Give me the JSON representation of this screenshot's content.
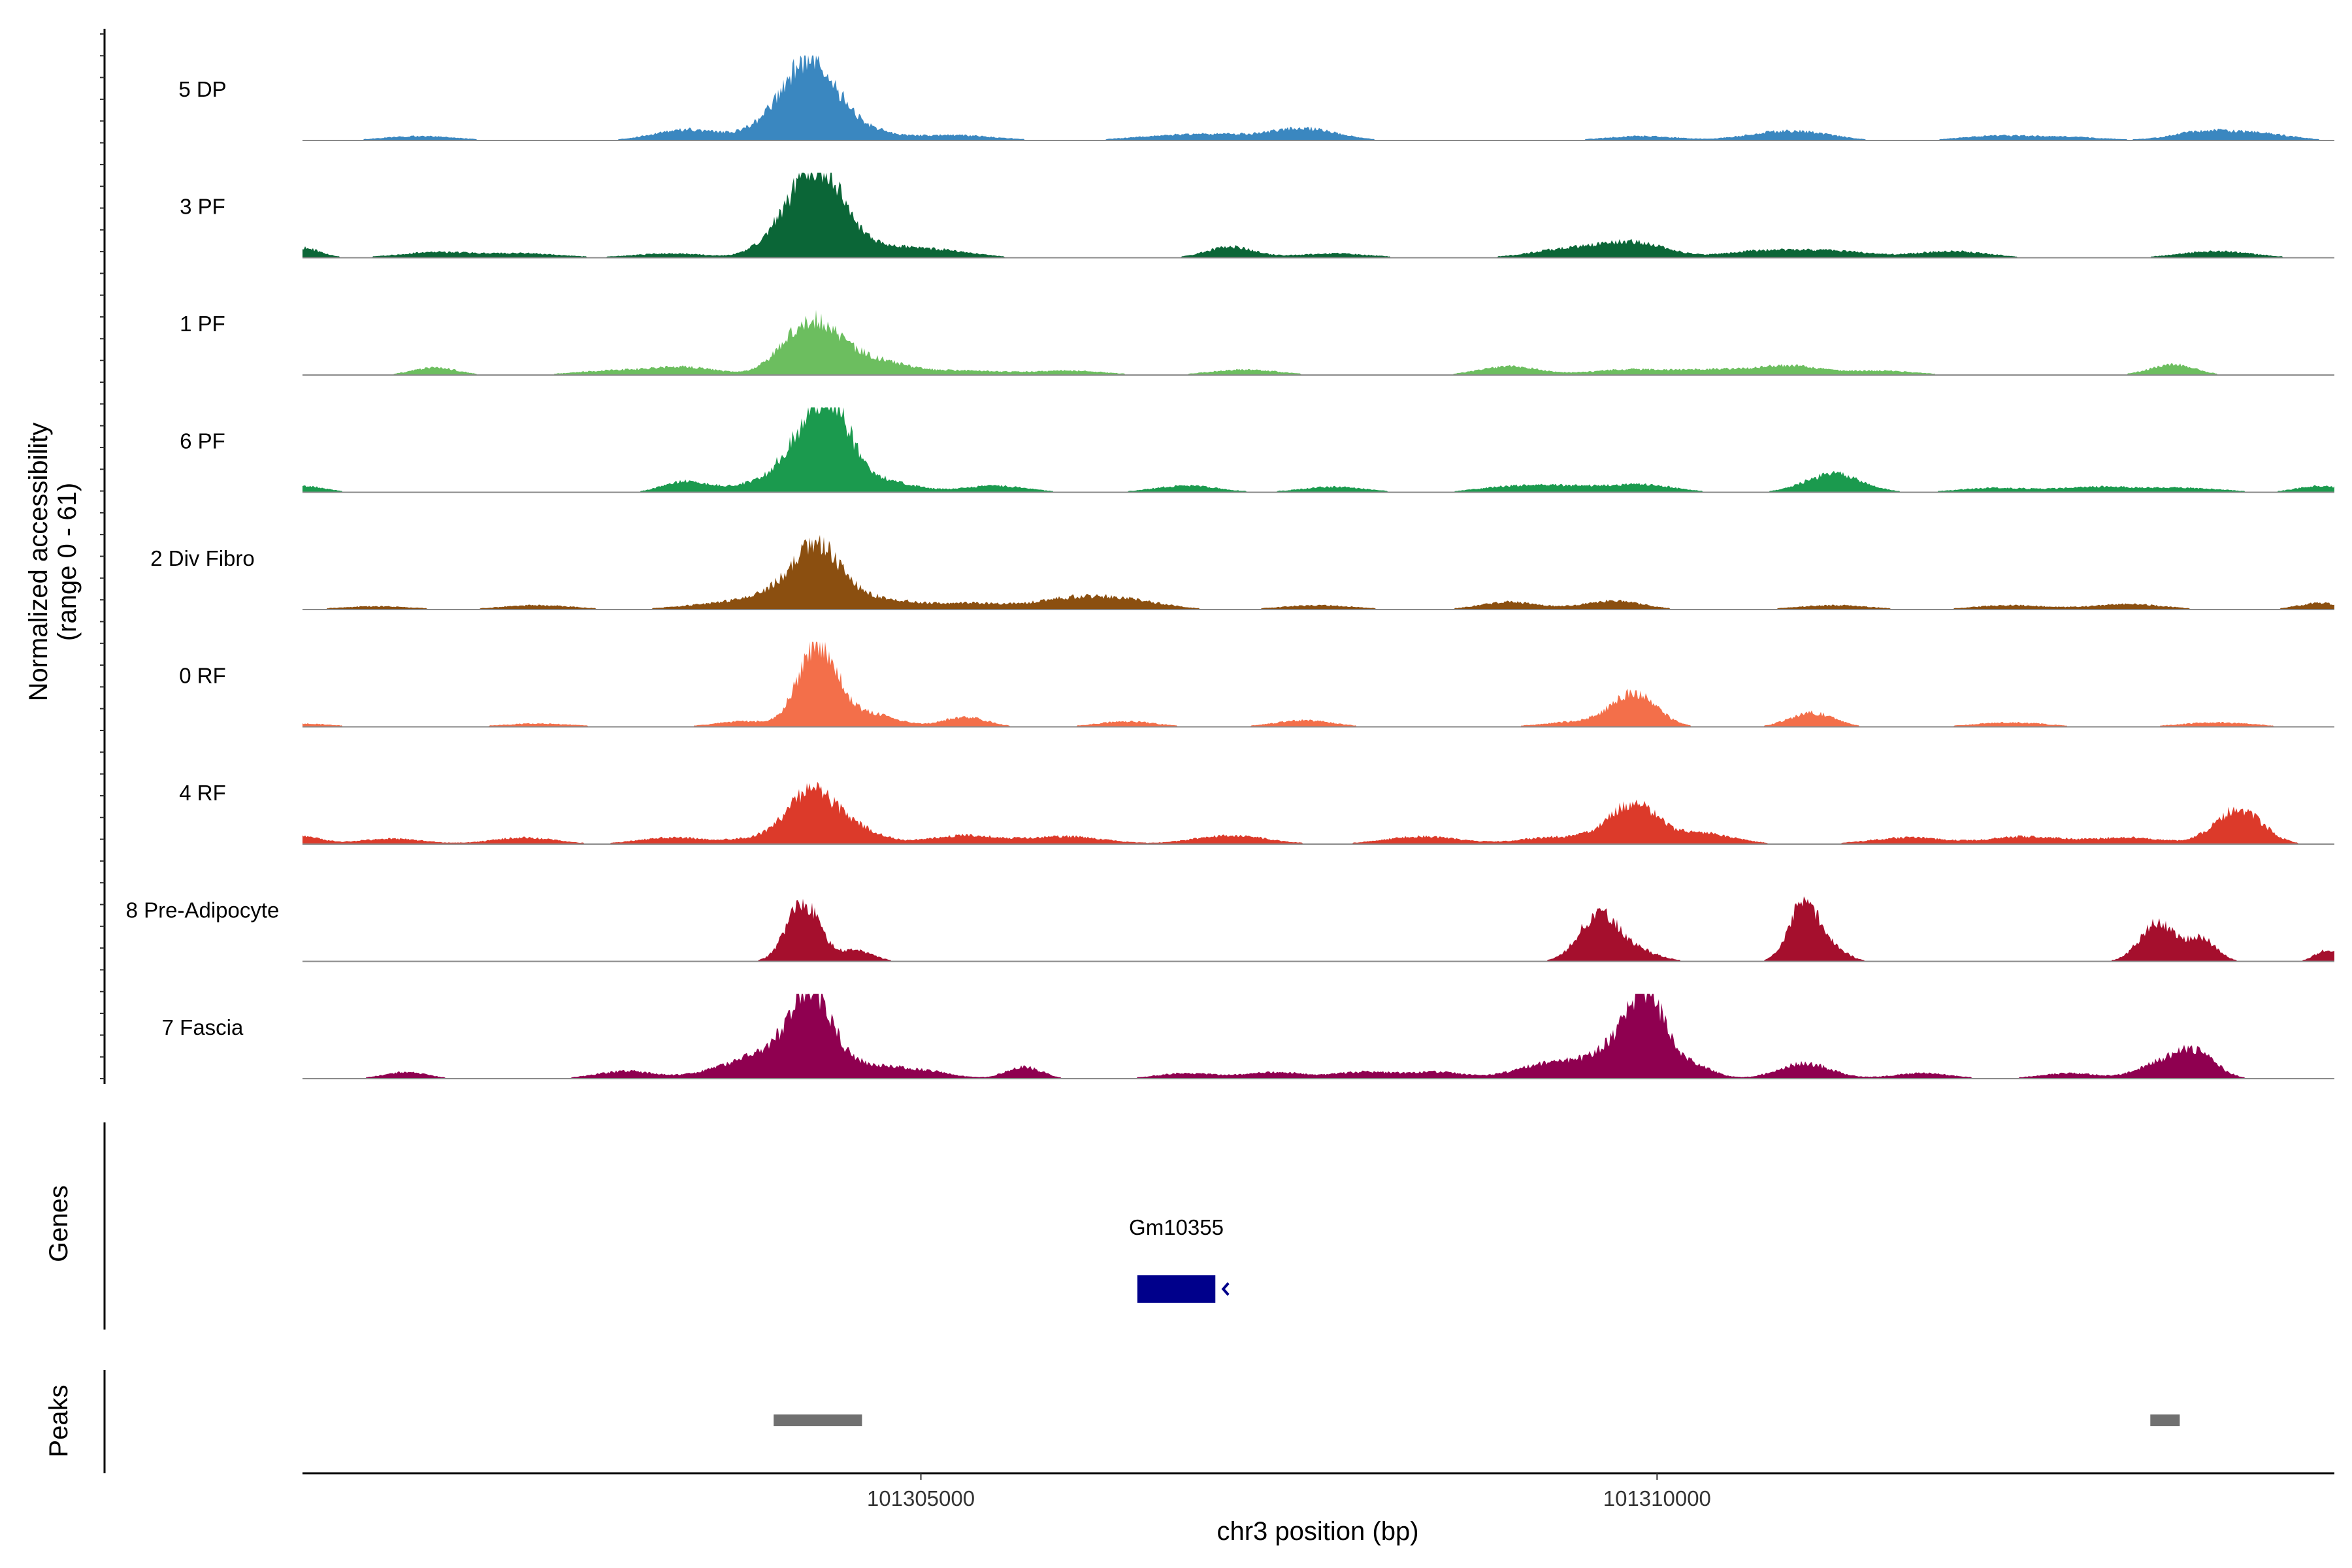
{
  "chart_data": {
    "type": "area",
    "ylabel_lines": [
      "Normalized accessibility",
      "(range 0 - 61)"
    ],
    "xlabel": "chr3 position (bp)",
    "y_range": [
      0,
      61
    ],
    "xlim": [
      101300800,
      101314600
    ],
    "x_ticks": [
      {
        "value": 101305000,
        "label": "101305000"
      },
      {
        "value": 101310000,
        "label": "101310000"
      }
    ],
    "panel_labels": {
      "genes": "Genes",
      "peaks": "Peaks"
    },
    "tracks": [
      {
        "name": "5 DP",
        "color": "#3a87c0",
        "peaks": [
          [
            101301600,
            4,
            250
          ],
          [
            101303400,
            10,
            220
          ],
          [
            101304050,
            18,
            200
          ],
          [
            101304250,
            58,
            160
          ],
          [
            101304500,
            15,
            200
          ],
          [
            101305200,
            5,
            300
          ],
          [
            101306600,
            3,
            250
          ],
          [
            101307000,
            5,
            250
          ],
          [
            101307600,
            11,
            230
          ],
          [
            101309900,
            4,
            250
          ],
          [
            101310700,
            4,
            200
          ],
          [
            101311000,
            7,
            220
          ],
          [
            101312300,
            4,
            250
          ],
          [
            101312800,
            3,
            250
          ],
          [
            101313700,
            8,
            200
          ],
          [
            101314100,
            6,
            220
          ]
        ]
      },
      {
        "name": "3 PF",
        "color": "#0b6637",
        "peaks": [
          [
            101300800,
            9,
            120
          ],
          [
            101301700,
            5,
            250
          ],
          [
            101302300,
            4,
            250
          ],
          [
            101303300,
            4,
            250
          ],
          [
            101304050,
            17,
            160
          ],
          [
            101304300,
            78,
            165
          ],
          [
            101304650,
            10,
            220
          ],
          [
            101305100,
            7,
            250
          ],
          [
            101307100,
            10,
            160
          ],
          [
            101307800,
            4,
            250
          ],
          [
            101309400,
            8,
            250
          ],
          [
            101309850,
            13,
            220
          ],
          [
            101310700,
            6,
            250
          ],
          [
            101311200,
            6,
            250
          ],
          [
            101312000,
            6,
            250
          ],
          [
            101313800,
            6,
            250
          ]
        ]
      },
      {
        "name": "1 PF",
        "color": "#6cbe5f",
        "peaks": [
          [
            101301700,
            7,
            150
          ],
          [
            101302900,
            4,
            250
          ],
          [
            101303400,
            7,
            220
          ],
          [
            101304250,
            48,
            185
          ],
          [
            101304650,
            14,
            230
          ],
          [
            101305300,
            4,
            250
          ],
          [
            101306000,
            4,
            250
          ],
          [
            101307200,
            5,
            230
          ],
          [
            101309000,
            8,
            200
          ],
          [
            101309800,
            5,
            250
          ],
          [
            101310400,
            5,
            250
          ],
          [
            101310900,
            8,
            200
          ],
          [
            101311500,
            4,
            250
          ],
          [
            101313500,
            10,
            150
          ]
        ]
      },
      {
        "name": "6 PF",
        "color": "#1b9a4e",
        "peaks": [
          [
            101300800,
            6,
            150
          ],
          [
            101303400,
            10,
            150
          ],
          [
            101303800,
            6,
            150
          ],
          [
            101304200,
            46,
            160
          ],
          [
            101304400,
            62,
            130
          ],
          [
            101304700,
            12,
            220
          ],
          [
            101305500,
            6,
            220
          ],
          [
            101306800,
            6,
            220
          ],
          [
            101307800,
            5,
            220
          ],
          [
            101309000,
            5,
            220
          ],
          [
            101309400,
            5,
            220
          ],
          [
            101309900,
            7,
            220
          ],
          [
            101311200,
            17,
            190
          ],
          [
            101312300,
            4,
            250
          ],
          [
            101313000,
            5,
            250
          ],
          [
            101313600,
            4,
            250
          ],
          [
            101314500,
            6,
            150
          ]
        ]
      },
      {
        "name": "2 Div Fibro",
        "color": "#8b4f10",
        "peaks": [
          [
            101301300,
            3,
            250
          ],
          [
            101302400,
            4,
            250
          ],
          [
            101303600,
            5,
            250
          ],
          [
            101304000,
            13,
            190
          ],
          [
            101304300,
            55,
            160
          ],
          [
            101304700,
            10,
            210
          ],
          [
            101305300,
            6,
            250
          ],
          [
            101306000,
            9,
            250
          ],
          [
            101306400,
            8,
            250
          ],
          [
            101307700,
            4,
            250
          ],
          [
            101309000,
            7,
            200
          ],
          [
            101309700,
            8,
            200
          ],
          [
            101311200,
            4,
            250
          ],
          [
            101312400,
            4,
            250
          ],
          [
            101313200,
            5,
            250
          ],
          [
            101314500,
            6,
            150
          ]
        ]
      },
      {
        "name": "0 RF",
        "color": "#f36f4a",
        "peaks": [
          [
            101300800,
            3,
            200
          ],
          [
            101302400,
            3,
            250
          ],
          [
            101303800,
            5,
            200
          ],
          [
            101304300,
            75,
            130
          ],
          [
            101304650,
            12,
            180
          ],
          [
            101305300,
            9,
            150
          ],
          [
            101306400,
            5,
            200
          ],
          [
            101307600,
            6,
            200
          ],
          [
            101309500,
            5,
            250
          ],
          [
            101309850,
            29,
            150
          ],
          [
            101311050,
            13,
            150
          ],
          [
            101312400,
            4,
            250
          ],
          [
            101313800,
            4,
            250
          ]
        ]
      },
      {
        "name": "4 RF",
        "color": "#dc3a2a",
        "peaks": [
          [
            101300800,
            7,
            130
          ],
          [
            101301400,
            5,
            220
          ],
          [
            101302300,
            6,
            220
          ],
          [
            101303300,
            6,
            220
          ],
          [
            101303900,
            5,
            220
          ],
          [
            101304250,
            45,
            160
          ],
          [
            101304550,
            14,
            170
          ],
          [
            101305300,
            8,
            250
          ],
          [
            101306000,
            7,
            250
          ],
          [
            101307100,
            8,
            250
          ],
          [
            101308400,
            7,
            250
          ],
          [
            101309300,
            6,
            250
          ],
          [
            101309750,
            8,
            200
          ],
          [
            101309850,
            29,
            150
          ],
          [
            101310300,
            10,
            220
          ],
          [
            101311700,
            6,
            250
          ],
          [
            101312500,
            7,
            250
          ],
          [
            101313200,
            6,
            250
          ],
          [
            101313950,
            32,
            160
          ]
        ]
      },
      {
        "name": "8 Pre-Adipocyte",
        "color": "#a50f2d",
        "peaks": [
          [
            101304200,
            55,
            110
          ],
          [
            101304550,
            10,
            120
          ],
          [
            101309600,
            42,
            130
          ],
          [
            101309850,
            10,
            150
          ],
          [
            101311000,
            55,
            100
          ],
          [
            101311200,
            10,
            100
          ],
          [
            101313400,
            35,
            120
          ],
          [
            101313700,
            20,
            100
          ],
          [
            101314550,
            10,
            80
          ]
        ]
      },
      {
        "name": "7 Fascia",
        "color": "#8f0050",
        "peaks": [
          [
            101301500,
            6,
            150
          ],
          [
            101303000,
            7,
            200
          ],
          [
            101303700,
            10,
            200
          ],
          [
            101303950,
            18,
            150
          ],
          [
            101304250,
            78,
            140
          ],
          [
            101304600,
            12,
            200
          ],
          [
            101305000,
            7,
            200
          ],
          [
            101305700,
            11,
            120
          ],
          [
            101306800,
            5,
            200
          ],
          [
            101307400,
            6,
            200
          ],
          [
            101308000,
            6,
            200
          ],
          [
            101308500,
            6,
            200
          ],
          [
            101309200,
            10,
            200
          ],
          [
            101309500,
            12,
            200
          ],
          [
            101309800,
            35,
            150
          ],
          [
            101309950,
            55,
            110
          ],
          [
            101310200,
            15,
            150
          ],
          [
            101311000,
            14,
            180
          ],
          [
            101311800,
            5,
            200
          ],
          [
            101312800,
            5,
            200
          ],
          [
            101313400,
            12,
            150
          ],
          [
            101313650,
            24,
            140
          ]
        ]
      }
    ],
    "genes": [
      {
        "name": "Gm10355",
        "start": 101306470,
        "end": 101307000,
        "strand": "-",
        "color": "#00008b"
      }
    ],
    "peaks": [
      {
        "start": 101304000,
        "end": 101304600,
        "color": "#707070"
      },
      {
        "start": 101313350,
        "end": 101313550,
        "color": "#707070"
      }
    ]
  }
}
